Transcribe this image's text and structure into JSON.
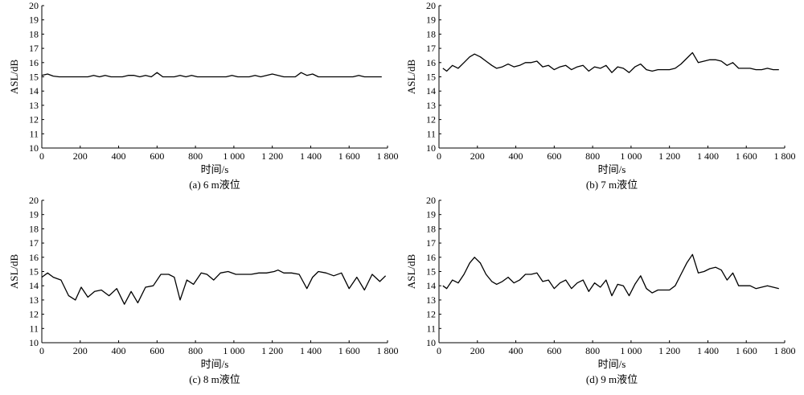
{
  "chart_data": [
    {
      "type": "line",
      "caption": "(a) 6 m液位",
      "xlabel": "时间/s",
      "ylabel": "ASL/dB",
      "xlim": [
        0,
        1800
      ],
      "ylim": [
        10,
        20
      ],
      "xticks": [
        0,
        200,
        400,
        600,
        800,
        1000,
        1200,
        1400,
        1600,
        1800
      ],
      "xtick_labels": [
        "0",
        "200",
        "400",
        "600",
        "800",
        "1 000",
        "1 200",
        "1 400",
        "1 600",
        "1 800"
      ],
      "yticks": [
        10,
        11,
        12,
        13,
        14,
        15,
        16,
        17,
        18,
        19,
        20
      ],
      "grid": false,
      "series": [
        {
          "x": [
            0,
            30,
            60,
            90,
            120,
            150,
            180,
            210,
            240,
            270,
            300,
            330,
            360,
            390,
            420,
            450,
            480,
            510,
            540,
            570,
            600,
            630,
            660,
            690,
            720,
            750,
            780,
            810,
            840,
            870,
            900,
            930,
            960,
            990,
            1020,
            1050,
            1080,
            1110,
            1140,
            1170,
            1200,
            1230,
            1260,
            1290,
            1320,
            1350,
            1380,
            1410,
            1440,
            1470,
            1500,
            1530,
            1560,
            1590,
            1620,
            1650,
            1680,
            1710,
            1740,
            1770
          ],
          "y": [
            15.1,
            15.2,
            15.05,
            15.0,
            15.0,
            15.0,
            15.0,
            15.0,
            15.0,
            15.1,
            15.0,
            15.1,
            15.0,
            15.0,
            15.0,
            15.1,
            15.1,
            15.0,
            15.1,
            15.0,
            15.3,
            15.0,
            15.0,
            15.0,
            15.1,
            15.0,
            15.1,
            15.0,
            15.0,
            15.0,
            15.0,
            15.0,
            15.0,
            15.1,
            15.0,
            15.0,
            15.0,
            15.1,
            15.0,
            15.1,
            15.2,
            15.1,
            15.0,
            15.0,
            15.0,
            15.3,
            15.1,
            15.2,
            15.0,
            15.0,
            15.0,
            15.0,
            15.0,
            15.0,
            15.0,
            15.1,
            15.0,
            15.0,
            15.0,
            15.0
          ]
        }
      ]
    },
    {
      "type": "line",
      "caption": "(b) 7 m液位",
      "xlabel": "时间/s",
      "ylabel": "ASL/dB",
      "xlim": [
        0,
        1800
      ],
      "ylim": [
        10,
        20
      ],
      "xticks": [
        0,
        200,
        400,
        600,
        800,
        1000,
        1200,
        1400,
        1600,
        1800
      ],
      "xtick_labels": [
        "0",
        "200",
        "400",
        "600",
        "800",
        "1 000",
        "1 200",
        "1 400",
        "1 600",
        "1 800"
      ],
      "yticks": [
        10,
        11,
        12,
        13,
        14,
        15,
        16,
        17,
        18,
        19,
        20
      ],
      "grid": false,
      "series": [
        {
          "x": [
            20,
            40,
            70,
            100,
            130,
            160,
            185,
            215,
            245,
            275,
            300,
            330,
            360,
            390,
            420,
            450,
            480,
            510,
            540,
            570,
            600,
            630,
            660,
            690,
            720,
            750,
            780,
            810,
            840,
            870,
            900,
            930,
            960,
            990,
            1020,
            1050,
            1080,
            1110,
            1140,
            1170,
            1200,
            1230,
            1260,
            1290,
            1320,
            1350,
            1380,
            1410,
            1440,
            1470,
            1500,
            1530,
            1560,
            1590,
            1620,
            1650,
            1680,
            1710,
            1740,
            1770
          ],
          "y": [
            15.6,
            15.4,
            15.8,
            15.6,
            16.0,
            16.4,
            16.6,
            16.4,
            16.1,
            15.8,
            15.6,
            15.7,
            15.9,
            15.7,
            15.8,
            16.0,
            16.0,
            16.1,
            15.7,
            15.8,
            15.5,
            15.7,
            15.8,
            15.5,
            15.7,
            15.8,
            15.4,
            15.7,
            15.6,
            15.8,
            15.3,
            15.7,
            15.6,
            15.3,
            15.7,
            15.9,
            15.5,
            15.4,
            15.5,
            15.5,
            15.5,
            15.6,
            15.9,
            16.3,
            16.7,
            16.0,
            16.1,
            16.2,
            16.2,
            16.1,
            15.8,
            16.0,
            15.6,
            15.6,
            15.6,
            15.5,
            15.5,
            15.6,
            15.5,
            15.5
          ]
        }
      ]
    },
    {
      "type": "line",
      "caption": "(c) 8 m液位",
      "xlabel": "时间/s",
      "ylabel": "ASL/dB",
      "xlim": [
        0,
        1800
      ],
      "ylim": [
        10,
        20
      ],
      "xticks": [
        0,
        200,
        400,
        600,
        800,
        1000,
        1200,
        1400,
        1600,
        1800
      ],
      "xtick_labels": [
        "0",
        "200",
        "400",
        "600",
        "800",
        "1 000",
        "1 200",
        "1 400",
        "1 600",
        "1 800"
      ],
      "yticks": [
        10,
        11,
        12,
        13,
        14,
        15,
        16,
        17,
        18,
        19,
        20
      ],
      "grid": false,
      "series": [
        {
          "x": [
            0,
            30,
            60,
            100,
            140,
            175,
            205,
            240,
            275,
            310,
            350,
            390,
            430,
            465,
            500,
            540,
            580,
            620,
            660,
            690,
            720,
            755,
            790,
            830,
            860,
            895,
            930,
            970,
            1010,
            1050,
            1090,
            1130,
            1170,
            1210,
            1230,
            1260,
            1300,
            1340,
            1380,
            1410,
            1440,
            1480,
            1520,
            1560,
            1600,
            1640,
            1680,
            1720,
            1760,
            1790
          ],
          "y": [
            14.6,
            14.9,
            14.6,
            14.4,
            13.3,
            13.0,
            13.9,
            13.2,
            13.6,
            13.7,
            13.3,
            13.8,
            12.7,
            13.6,
            12.8,
            13.9,
            14.0,
            14.8,
            14.8,
            14.6,
            13.0,
            14.4,
            14.1,
            14.9,
            14.8,
            14.4,
            14.9,
            15.0,
            14.8,
            14.8,
            14.8,
            14.9,
            14.9,
            15.0,
            15.1,
            14.9,
            14.9,
            14.8,
            13.8,
            14.6,
            15.0,
            14.9,
            14.7,
            14.9,
            13.8,
            14.6,
            13.7,
            14.8,
            14.3,
            14.7
          ]
        }
      ]
    },
    {
      "type": "line",
      "caption": "(d) 9 m液位",
      "xlabel": "时间/s",
      "ylabel": "ASL/dB",
      "xlim": [
        0,
        1800
      ],
      "ylim": [
        10,
        20
      ],
      "xticks": [
        0,
        200,
        400,
        600,
        800,
        1000,
        1200,
        1400,
        1600,
        1800
      ],
      "xtick_labels": [
        "0",
        "200",
        "400",
        "600",
        "800",
        "1 000",
        "1 200",
        "1 400",
        "1 600",
        "1 800"
      ],
      "yticks": [
        10,
        11,
        12,
        13,
        14,
        15,
        16,
        17,
        18,
        19,
        20
      ],
      "grid": false,
      "series": [
        {
          "x": [
            20,
            40,
            70,
            100,
            130,
            160,
            185,
            215,
            245,
            275,
            300,
            330,
            360,
            390,
            420,
            450,
            480,
            510,
            540,
            570,
            600,
            630,
            660,
            690,
            720,
            750,
            780,
            810,
            840,
            870,
            900,
            930,
            960,
            990,
            1020,
            1050,
            1080,
            1110,
            1140,
            1170,
            1200,
            1230,
            1260,
            1290,
            1320,
            1350,
            1380,
            1410,
            1440,
            1470,
            1500,
            1530,
            1560,
            1590,
            1620,
            1650,
            1680,
            1710,
            1740,
            1770
          ],
          "y": [
            14.0,
            13.8,
            14.4,
            14.2,
            14.8,
            15.6,
            16.0,
            15.6,
            14.8,
            14.3,
            14.1,
            14.3,
            14.6,
            14.2,
            14.4,
            14.8,
            14.8,
            14.9,
            14.3,
            14.4,
            13.8,
            14.2,
            14.4,
            13.8,
            14.2,
            14.4,
            13.6,
            14.2,
            13.9,
            14.4,
            13.3,
            14.1,
            14.0,
            13.3,
            14.1,
            14.7,
            13.8,
            13.5,
            13.7,
            13.7,
            13.7,
            14.0,
            14.8,
            15.6,
            16.2,
            14.9,
            15.0,
            15.2,
            15.3,
            15.1,
            14.4,
            14.9,
            14.0,
            14.0,
            14.0,
            13.8,
            13.9,
            14.0,
            13.9,
            13.8
          ]
        }
      ]
    }
  ]
}
